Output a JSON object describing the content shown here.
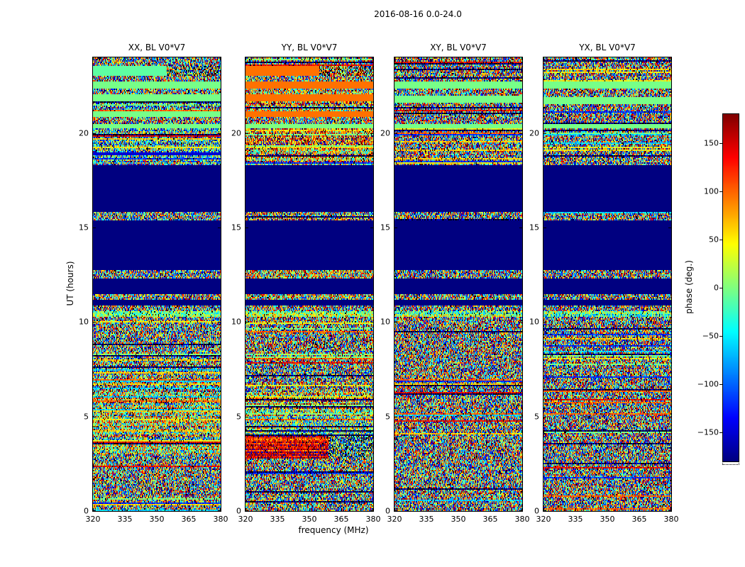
{
  "chart_data": {
    "type": "heatmap",
    "title": "2016-08-16 0.0-24.0",
    "xlabel": "frequency (MHz)",
    "ylabel": "UT (hours)",
    "x_range": [
      320,
      380
    ],
    "x_ticks": [
      320,
      335,
      350,
      365,
      380
    ],
    "y_range": [
      0,
      24
    ],
    "y_ticks": [
      0,
      5,
      10,
      15,
      20
    ],
    "colorbar": {
      "label": "phase (deg.)",
      "range": [
        -180,
        180
      ],
      "ticks": [
        -150,
        -100,
        -50,
        0,
        50,
        100,
        150
      ],
      "colormap": "jet"
    },
    "panels": [
      {
        "title": "XX, BL V0*V7",
        "segments": [
          {
            "ut": [
              23.55,
              24.01
            ],
            "style": "noise",
            "bias_deg": 0,
            "spread_deg": 360,
            "bands": true
          },
          {
            "ut": [
              23.0,
              23.55
            ],
            "style": "split",
            "split_frac": 0.58,
            "left": {
              "style": "solid",
              "phase_deg": -12
            },
            "right": {
              "style": "noise",
              "bias_deg": -20,
              "spread_deg": 320,
              "dense": true
            }
          },
          {
            "ut": [
              22.75,
              23.0
            ],
            "style": "noise",
            "bias_deg": 0,
            "spread_deg": 360
          },
          {
            "ut": [
              22.35,
              22.75
            ],
            "style": "solid",
            "phase_deg": -3
          },
          {
            "ut": [
              22.05,
              22.35
            ],
            "style": "noise",
            "bias_deg": -25,
            "spread_deg": 320
          },
          {
            "ut": [
              21.65,
              22.05
            ],
            "style": "solid",
            "phase_deg": -3
          },
          {
            "ut": [
              21.15,
              21.65
            ],
            "style": "noise",
            "bias_deg": -45,
            "spread_deg": 280,
            "bands": true
          },
          {
            "ut": [
              20.85,
              21.15
            ],
            "style": "solid",
            "phase_deg": -3
          },
          {
            "ut": [
              20.5,
              20.85
            ],
            "style": "noise",
            "bias_deg": -10,
            "spread_deg": 340
          },
          {
            "ut": [
              20.25,
              20.5
            ],
            "style": "solid",
            "phase_deg": -3
          },
          {
            "ut": [
              19.0,
              20.25
            ],
            "style": "noise",
            "bias_deg": -50,
            "spread_deg": 260,
            "bands": true
          },
          {
            "ut": [
              18.85,
              19.0
            ],
            "style": "solid",
            "phase_deg": -150
          },
          {
            "ut": [
              18.3,
              18.85
            ],
            "style": "noise",
            "bias_deg": -50,
            "spread_deg": 260,
            "bands": true
          },
          {
            "ut": [
              15.85,
              18.3
            ],
            "style": "solid",
            "phase_deg": -180
          },
          {
            "ut": [
              15.4,
              15.85
            ],
            "style": "noise",
            "bias_deg": -20,
            "spread_deg": 330,
            "bands": true
          },
          {
            "ut": [
              12.75,
              15.4
            ],
            "style": "solid",
            "phase_deg": -180
          },
          {
            "ut": [
              12.3,
              12.75
            ],
            "style": "noise",
            "bias_deg": -20,
            "spread_deg": 330
          },
          {
            "ut": [
              11.5,
              12.3
            ],
            "style": "solid",
            "phase_deg": -180
          },
          {
            "ut": [
              11.2,
              11.5
            ],
            "style": "noise",
            "bias_deg": 0,
            "spread_deg": 340
          },
          {
            "ut": [
              10.85,
              11.2
            ],
            "style": "solid",
            "phase_deg": -180
          },
          {
            "ut": [
              10.55,
              10.85
            ],
            "style": "noise",
            "bias_deg": 0,
            "spread_deg": 340
          },
          {
            "ut": [
              10.3,
              10.55
            ],
            "style": "noise",
            "bias_deg": 5,
            "spread_deg": 120
          },
          {
            "ut": [
              6.3,
              10.3
            ],
            "style": "noise",
            "bias_deg": 5,
            "spread_deg": 340,
            "bands": true
          },
          {
            "ut": [
              3.0,
              6.3
            ],
            "style": "noise",
            "bias_deg": 30,
            "spread_deg": 250,
            "bands": true
          },
          {
            "ut": [
              -0.01,
              3.0
            ],
            "style": "noise",
            "bias_deg": 5,
            "spread_deg": 340,
            "bands": true
          }
        ]
      },
      {
        "title": "YY, BL V0*V7",
        "segments": [
          {
            "ut": [
              23.55,
              24.01
            ],
            "style": "noise",
            "bias_deg": 10,
            "spread_deg": 360,
            "bands": true
          },
          {
            "ut": [
              23.0,
              23.55
            ],
            "style": "split",
            "split_frac": 0.58,
            "left": {
              "style": "solid",
              "phase_deg": 95
            },
            "right": {
              "style": "noise",
              "bias_deg": 50,
              "spread_deg": 300,
              "dense": true
            }
          },
          {
            "ut": [
              22.75,
              23.0
            ],
            "style": "noise",
            "bias_deg": 30,
            "spread_deg": 330
          },
          {
            "ut": [
              22.35,
              22.75
            ],
            "style": "solid",
            "phase_deg": 95
          },
          {
            "ut": [
              22.05,
              22.35
            ],
            "style": "noise",
            "bias_deg": 50,
            "spread_deg": 280
          },
          {
            "ut": [
              21.65,
              22.05
            ],
            "style": "solid",
            "phase_deg": 95
          },
          {
            "ut": [
              21.15,
              21.65
            ],
            "style": "noise",
            "bias_deg": 55,
            "spread_deg": 260,
            "bands": true
          },
          {
            "ut": [
              20.85,
              21.15
            ],
            "style": "solid",
            "phase_deg": 95
          },
          {
            "ut": [
              20.5,
              20.85
            ],
            "style": "noise",
            "bias_deg": 35,
            "spread_deg": 320
          },
          {
            "ut": [
              20.25,
              20.5
            ],
            "style": "solid",
            "phase_deg": 0
          },
          {
            "ut": [
              18.3,
              20.25
            ],
            "style": "noise",
            "bias_deg": 70,
            "spread_deg": 240,
            "bands": true
          },
          {
            "ut": [
              15.85,
              18.3
            ],
            "style": "solid",
            "phase_deg": -180
          },
          {
            "ut": [
              15.4,
              15.85
            ],
            "style": "noise",
            "bias_deg": 50,
            "spread_deg": 300,
            "bands": true
          },
          {
            "ut": [
              12.75,
              15.4
            ],
            "style": "solid",
            "phase_deg": -180
          },
          {
            "ut": [
              12.3,
              12.75
            ],
            "style": "noise",
            "bias_deg": 60,
            "spread_deg": 280
          },
          {
            "ut": [
              11.5,
              12.3
            ],
            "style": "solid",
            "phase_deg": -180
          },
          {
            "ut": [
              11.2,
              11.5
            ],
            "style": "noise",
            "bias_deg": 40,
            "spread_deg": 300
          },
          {
            "ut": [
              10.85,
              11.2
            ],
            "style": "solid",
            "phase_deg": -180
          },
          {
            "ut": [
              10.55,
              10.85
            ],
            "style": "noise",
            "bias_deg": 20,
            "spread_deg": 330
          },
          {
            "ut": [
              10.3,
              10.55
            ],
            "style": "noise",
            "bias_deg": 20,
            "spread_deg": 140
          },
          {
            "ut": [
              6.3,
              10.3
            ],
            "style": "noise",
            "bias_deg": 15,
            "spread_deg": 340,
            "bands": true
          },
          {
            "ut": [
              3.95,
              6.3
            ],
            "style": "noise",
            "bias_deg": 40,
            "spread_deg": 240,
            "bands": true
          },
          {
            "ut": [
              2.8,
              3.95
            ],
            "style": "split",
            "split_frac": 0.65,
            "left": {
              "style": "noise",
              "bias_deg": 140,
              "spread_deg": 100
            },
            "right": {
              "style": "noise",
              "bias_deg": -40,
              "spread_deg": 280,
              "dense": true
            }
          },
          {
            "ut": [
              -0.01,
              2.8
            ],
            "style": "noise",
            "bias_deg": 15,
            "spread_deg": 340,
            "bands": true
          }
        ]
      },
      {
        "title": "XY, BL V0*V7",
        "segments": [
          {
            "ut": [
              22.75,
              24.01
            ],
            "style": "noise",
            "bias_deg": 0,
            "spread_deg": 360,
            "bands": true
          },
          {
            "ut": [
              22.35,
              22.75
            ],
            "style": "solid",
            "phase_deg": -3
          },
          {
            "ut": [
              21.95,
              22.35
            ],
            "style": "noise",
            "bias_deg": 0,
            "spread_deg": 360
          },
          {
            "ut": [
              21.6,
              21.95
            ],
            "style": "solid",
            "phase_deg": -3
          },
          {
            "ut": [
              20.5,
              21.6
            ],
            "style": "noise",
            "bias_deg": 0,
            "spread_deg": 360,
            "bands": true
          },
          {
            "ut": [
              20.25,
              20.5
            ],
            "style": "solid",
            "phase_deg": -3
          },
          {
            "ut": [
              18.3,
              20.25
            ],
            "style": "noise",
            "bias_deg": 0,
            "spread_deg": 360,
            "bands": true
          },
          {
            "ut": [
              15.85,
              18.3
            ],
            "style": "solid",
            "phase_deg": -180
          },
          {
            "ut": [
              15.4,
              15.85
            ],
            "style": "noise",
            "bias_deg": 0,
            "spread_deg": 360,
            "bands": true
          },
          {
            "ut": [
              12.75,
              15.4
            ],
            "style": "solid",
            "phase_deg": -180
          },
          {
            "ut": [
              12.3,
              12.75
            ],
            "style": "noise",
            "bias_deg": 0,
            "spread_deg": 360
          },
          {
            "ut": [
              11.5,
              12.3
            ],
            "style": "solid",
            "phase_deg": -180
          },
          {
            "ut": [
              11.2,
              11.5
            ],
            "style": "noise",
            "bias_deg": 0,
            "spread_deg": 360
          },
          {
            "ut": [
              10.85,
              11.2
            ],
            "style": "solid",
            "phase_deg": -180
          },
          {
            "ut": [
              10.55,
              10.85
            ],
            "style": "noise",
            "bias_deg": 0,
            "spread_deg": 360
          },
          {
            "ut": [
              10.3,
              10.55
            ],
            "style": "noise",
            "bias_deg": 0,
            "spread_deg": 150
          },
          {
            "ut": [
              -0.01,
              10.3
            ],
            "style": "noise",
            "bias_deg": 0,
            "spread_deg": 360,
            "bands": true
          }
        ]
      },
      {
        "title": "YX, BL V0*V7",
        "segments": [
          {
            "ut": [
              22.7,
              24.01
            ],
            "style": "noise",
            "bias_deg": 0,
            "spread_deg": 360,
            "bands": true
          },
          {
            "ut": [
              22.35,
              22.7
            ],
            "style": "solid",
            "phase_deg": -3
          },
          {
            "ut": [
              21.9,
              22.35
            ],
            "style": "noise",
            "bias_deg": 0,
            "spread_deg": 360
          },
          {
            "ut": [
              21.55,
              21.9
            ],
            "style": "solid",
            "phase_deg": -3
          },
          {
            "ut": [
              20.5,
              21.55
            ],
            "style": "noise",
            "bias_deg": 0,
            "spread_deg": 360,
            "bands": true
          },
          {
            "ut": [
              20.25,
              20.5
            ],
            "style": "solid",
            "phase_deg": -3
          },
          {
            "ut": [
              18.3,
              20.25
            ],
            "style": "noise",
            "bias_deg": 0,
            "spread_deg": 360,
            "bands": true
          },
          {
            "ut": [
              15.85,
              18.3
            ],
            "style": "solid",
            "phase_deg": -180
          },
          {
            "ut": [
              15.4,
              15.85
            ],
            "style": "noise",
            "bias_deg": 0,
            "spread_deg": 360,
            "bands": true
          },
          {
            "ut": [
              12.75,
              15.4
            ],
            "style": "solid",
            "phase_deg": -180
          },
          {
            "ut": [
              12.3,
              12.75
            ],
            "style": "noise",
            "bias_deg": 0,
            "spread_deg": 360
          },
          {
            "ut": [
              11.5,
              12.3
            ],
            "style": "solid",
            "phase_deg": -180
          },
          {
            "ut": [
              11.2,
              11.5
            ],
            "style": "noise",
            "bias_deg": 0,
            "spread_deg": 360
          },
          {
            "ut": [
              10.85,
              11.2
            ],
            "style": "solid",
            "phase_deg": -180
          },
          {
            "ut": [
              10.55,
              10.85
            ],
            "style": "noise",
            "bias_deg": 0,
            "spread_deg": 360
          },
          {
            "ut": [
              10.3,
              10.55
            ],
            "style": "noise",
            "bias_deg": 0,
            "spread_deg": 150
          },
          {
            "ut": [
              -0.01,
              10.3
            ],
            "style": "noise",
            "bias_deg": 0,
            "spread_deg": 360,
            "bands": true
          }
        ]
      }
    ]
  }
}
